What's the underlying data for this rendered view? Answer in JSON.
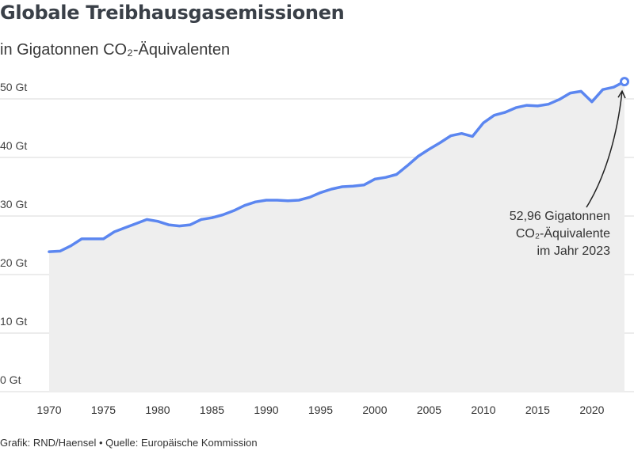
{
  "header": {
    "title": "Globale Treibhausgasemissionen",
    "subtitle": "in Gigatonnen CO₂-Äquivalenten"
  },
  "footer": {
    "credit": "Grafik: RND/Haensel • Quelle: Europäische Kommission"
  },
  "colors": {
    "line": "#5b86f0",
    "area": "#eeeeee",
    "grid": "#d8d8d8"
  },
  "chart_data": {
    "type": "area",
    "title": "Globale Treibhausgasemissionen",
    "subtitle": "in Gigatonnen CO₂-Äquivalenten",
    "xlabel": "",
    "ylabel": "",
    "xlim": [
      1970,
      2023
    ],
    "ylim": [
      0,
      50
    ],
    "grid": true,
    "yticks": [
      0,
      10,
      20,
      30,
      40,
      50
    ],
    "ytick_labels": [
      "0 Gt",
      "10 Gt",
      "20 Gt",
      "30 Gt",
      "40 Gt",
      "50 Gt"
    ],
    "xticks": [
      1970,
      1975,
      1980,
      1985,
      1990,
      1995,
      2000,
      2005,
      2010,
      2015,
      2020
    ],
    "xtick_labels": [
      "1970",
      "1975",
      "1980",
      "1985",
      "1990",
      "1995",
      "2000",
      "2005",
      "2010",
      "2015",
      "2020"
    ],
    "series": [
      {
        "x": [
          1970,
          1971,
          1972,
          1973,
          1974,
          1975,
          1976,
          1977,
          1978,
          1979,
          1980,
          1981,
          1982,
          1983,
          1984,
          1985,
          1986,
          1987,
          1988,
          1989,
          1990,
          1991,
          1992,
          1993,
          1994,
          1995,
          1996,
          1997,
          1998,
          1999,
          2000,
          2001,
          2002,
          2003,
          2004,
          2005,
          2006,
          2007,
          2008,
          2009,
          2010,
          2011,
          2012,
          2013,
          2014,
          2015,
          2016,
          2017,
          2018,
          2019,
          2020,
          2021,
          2022,
          2023
        ],
        "y": [
          23.9,
          24.0,
          24.9,
          26.1,
          26.1,
          26.1,
          27.3,
          28.0,
          28.7,
          29.4,
          29.1,
          28.5,
          28.3,
          28.5,
          29.4,
          29.7,
          30.2,
          30.9,
          31.8,
          32.4,
          32.7,
          32.7,
          32.6,
          32.7,
          33.2,
          34.0,
          34.6,
          35.0,
          35.1,
          35.3,
          36.3,
          36.6,
          37.1,
          38.6,
          40.2,
          41.4,
          42.5,
          43.7,
          44.1,
          43.6,
          45.9,
          47.2,
          47.7,
          48.5,
          48.9,
          48.8,
          49.1,
          49.9,
          51.0,
          51.3,
          49.5,
          51.6,
          52.0,
          52.96
        ]
      }
    ],
    "highlight": {
      "x": 2023,
      "y": 52.96
    },
    "annotation": {
      "lines": [
        "52,96 Gigatonnen",
        "CO₂-Äquivalente",
        "im Jahr 2023"
      ]
    }
  }
}
